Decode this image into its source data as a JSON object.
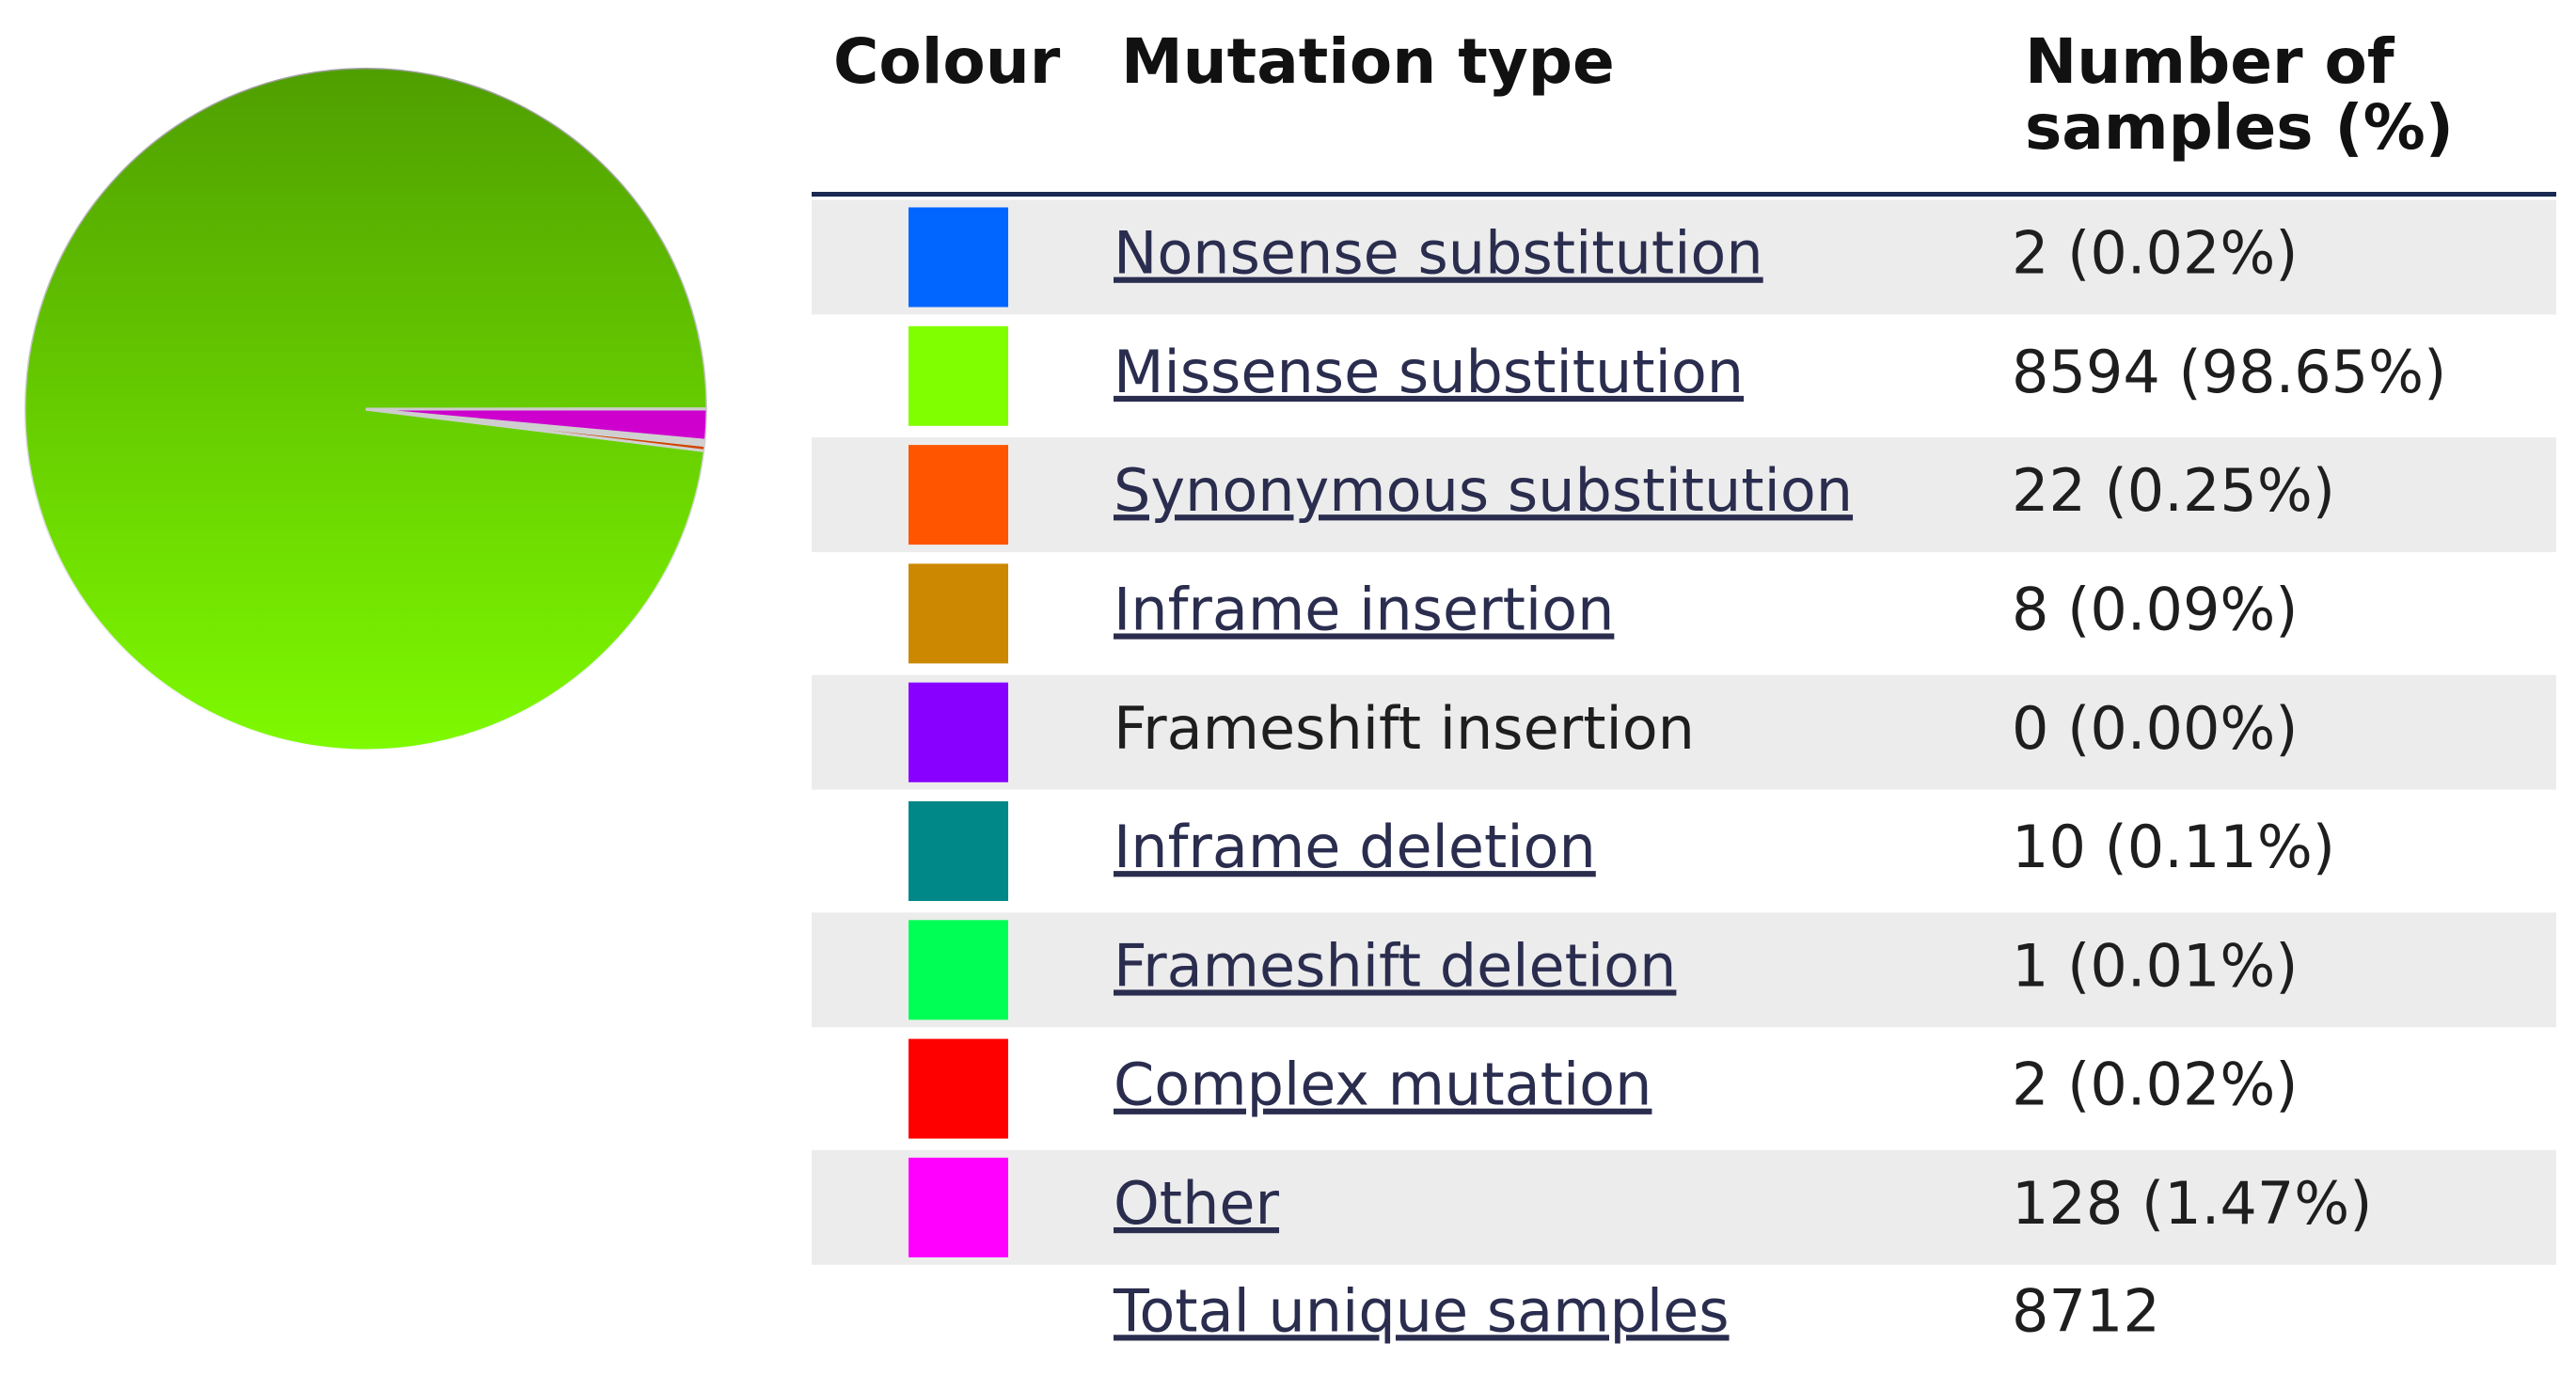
{
  "chart_data": {
    "type": "pie",
    "headers": {
      "colour": "Colour",
      "type": "Mutation type",
      "count": [
        "Number of",
        "samples (%)"
      ]
    },
    "categories": [
      "Nonsense substitution",
      "Missense substitution",
      "Synonymous substitution",
      "Inframe insertion",
      "Frameshift insertion",
      "Inframe deletion",
      "Frameshift deletion",
      "Complex mutation",
      "Other"
    ],
    "values": [
      2,
      8594,
      22,
      8,
      0,
      10,
      1,
      2,
      128
    ],
    "value_labels": [
      "2 (0.02%)",
      "8594 (98.65%)",
      "22 (0.25%)",
      "8 (0.09%)",
      "0 (0.00%)",
      "10 (0.11%)",
      "1 (0.01%)",
      "2 (0.02%)",
      "128 (1.47%)"
    ],
    "colors": [
      "#0066ff",
      "#80ff00",
      "#ff5500",
      "#cc8800",
      "#8800ff",
      "#008888",
      "#00ff55",
      "#ff0000",
      "#ff00ff"
    ],
    "linked": [
      true,
      true,
      true,
      true,
      false,
      true,
      true,
      true,
      true
    ],
    "total_label": "Total unique samples",
    "total": 8712
  }
}
